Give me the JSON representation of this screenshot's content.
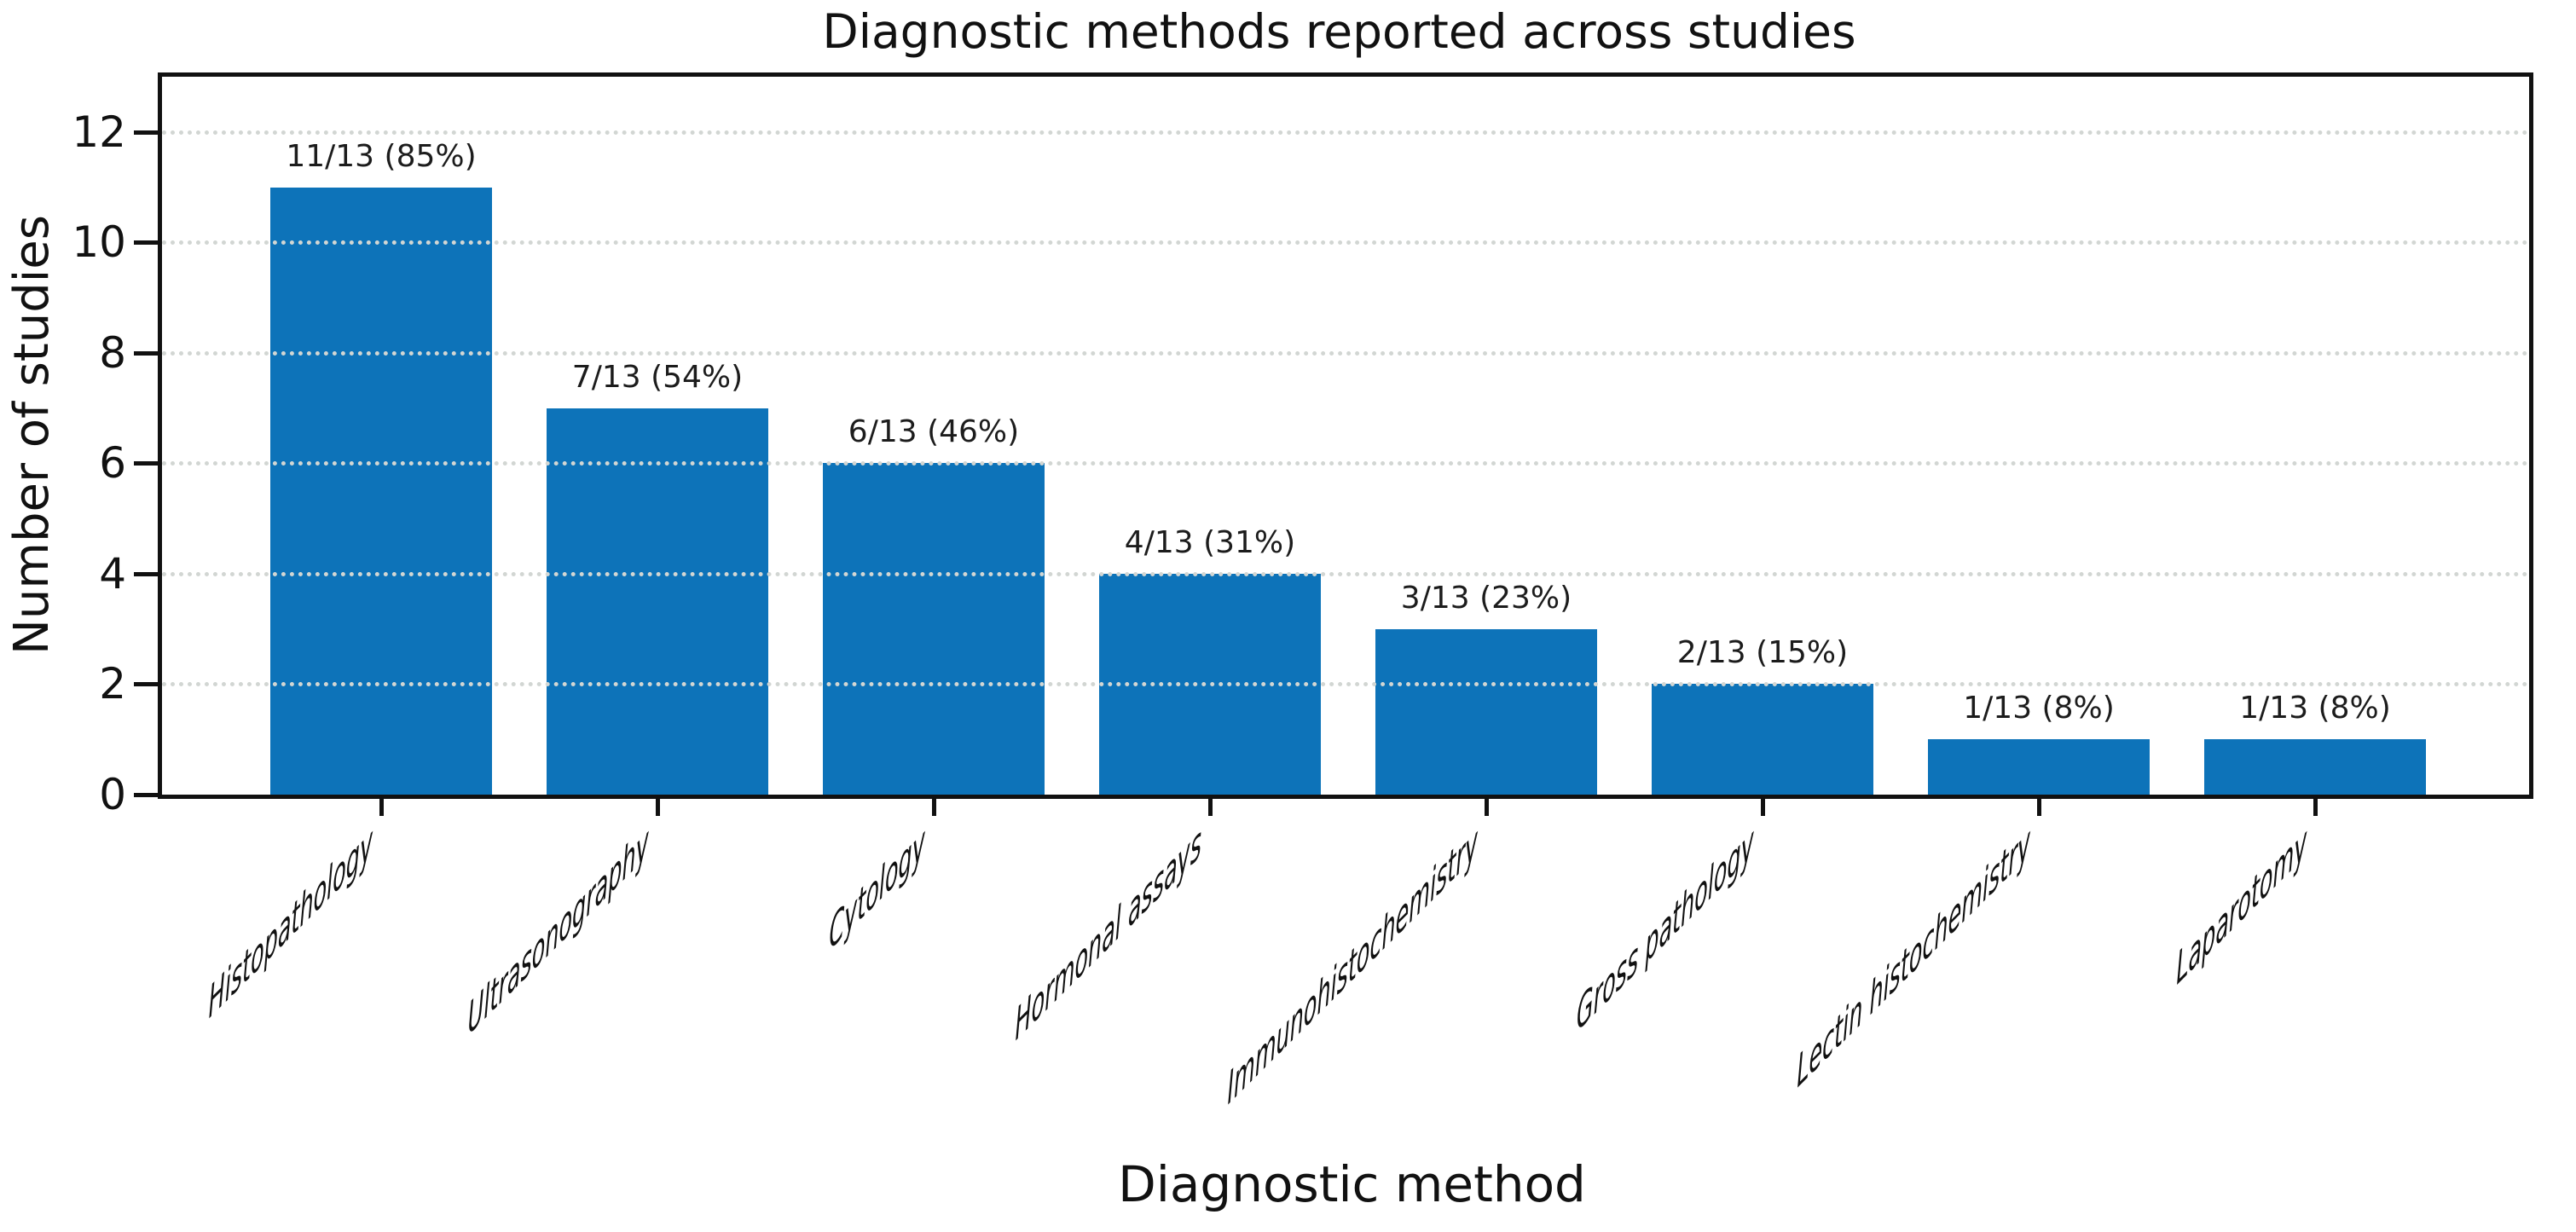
{
  "chart_data": {
    "type": "bar",
    "title": "Diagnostic methods reported across studies",
    "xlabel": "Diagnostic method",
    "ylabel": "Number of studies",
    "categories": [
      "Histopathology",
      "Ultrasonography",
      "Cytology",
      "Hormonal assays",
      "Immunohistochemistry",
      "Gross pathology",
      "Lectin histochemistry",
      "Laparotomy"
    ],
    "values": [
      11,
      7,
      6,
      4,
      3,
      2,
      1,
      1
    ],
    "bar_labels": [
      "11/13 (85%)",
      "7/13 (54%)",
      "6/13 (46%)",
      "4/13 (31%)",
      "3/13 (23%)",
      "2/13 (15%)",
      "1/13 (8%)",
      "1/13 (8%)"
    ],
    "denominator": 13,
    "y_ticks": [
      0,
      2,
      4,
      6,
      8,
      10,
      12
    ],
    "ylim": [
      0,
      13
    ],
    "grid": "horizontal-dotted",
    "legend_position": "none",
    "colors": {
      "bar": "#0d73b9",
      "grid": "#d2d6d3",
      "spine": "#111111",
      "text": "#111111"
    }
  }
}
